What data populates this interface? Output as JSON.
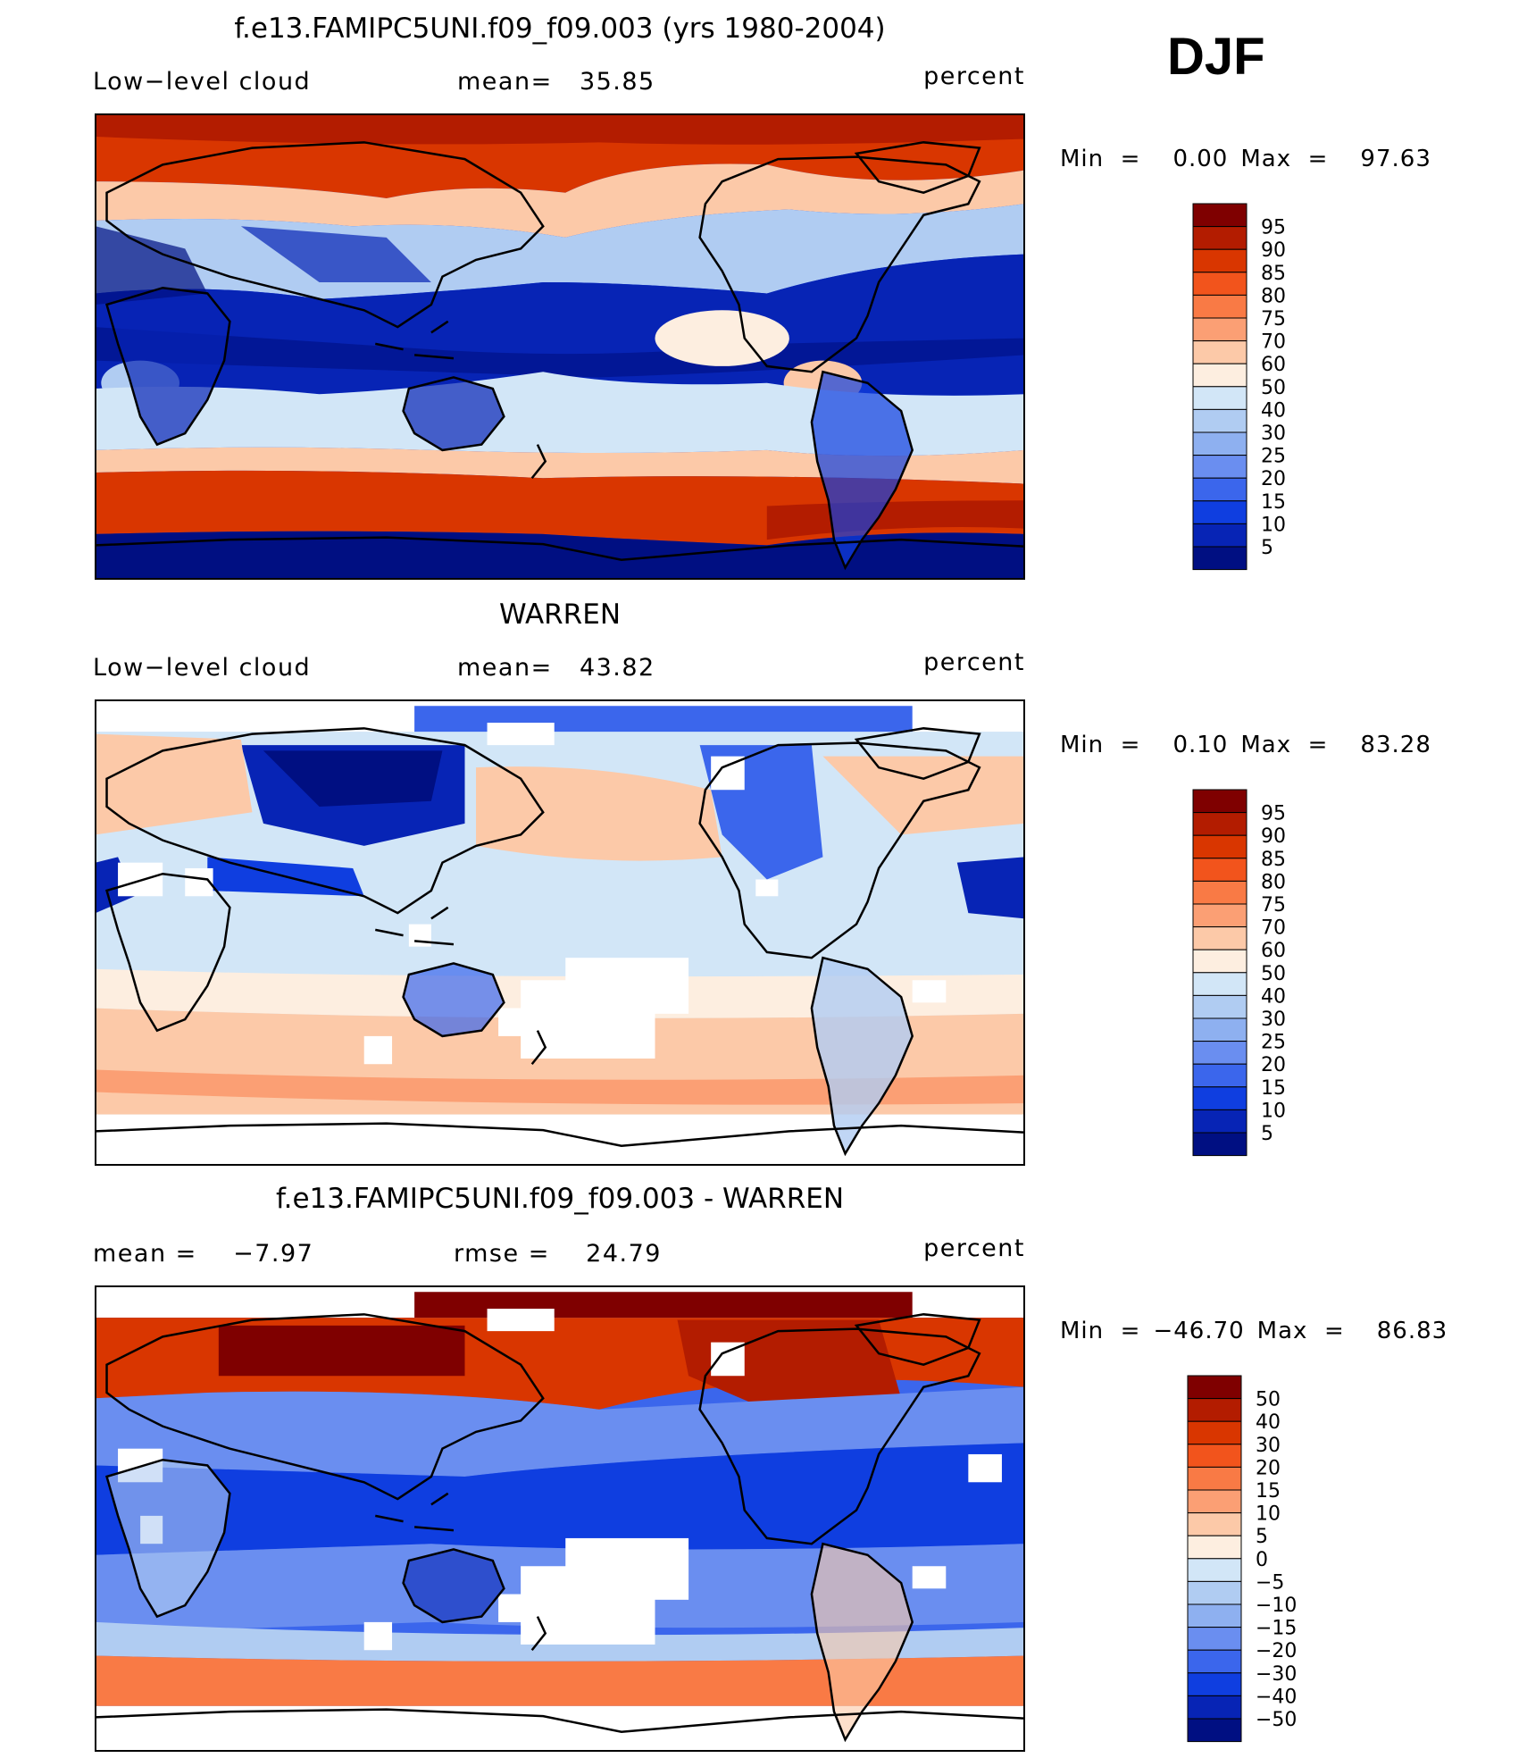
{
  "season": "DJF",
  "panels": [
    {
      "id": "model",
      "title": "f.e13.FAMIPC5UNI.f09_f09.003 (yrs 1980-2004)",
      "left_label": "Low−level cloud",
      "stat1": "mean=   35.85",
      "stat2": "",
      "unit": "percent",
      "minmax": {
        "min_label": "Min  =",
        "min": "0.00",
        "max_label": "Max  =",
        "max": "97.63"
      },
      "colorbar": {
        "labels": [
          "95",
          "90",
          "85",
          "80",
          "75",
          "70",
          "60",
          "50",
          "40",
          "30",
          "25",
          "20",
          "15",
          "10",
          "5"
        ],
        "colors": [
          "#7f0000",
          "#b31c00",
          "#d93600",
          "#f2541c",
          "#f97a45",
          "#fb9f74",
          "#fcc9a8",
          "#fdeee0",
          "#d2e6f7",
          "#b0ccf2",
          "#8eb0f0",
          "#6a8ef0",
          "#3b66ec",
          "#0f3ee0",
          "#0724b5",
          "#000f82"
        ]
      },
      "features": {
        "continent_outline_color": "#000000",
        "note": ""
      }
    },
    {
      "id": "obs",
      "title": "WARREN",
      "left_label": "Low−level cloud",
      "stat1": "mean=   43.82",
      "stat2": "",
      "unit": "percent",
      "minmax": {
        "min_label": "Min  =",
        "min": "0.10",
        "max_label": "Max  =",
        "max": "83.28"
      },
      "colorbar": {
        "labels": [
          "95",
          "90",
          "85",
          "80",
          "75",
          "70",
          "60",
          "50",
          "40",
          "30",
          "25",
          "20",
          "15",
          "10",
          "5"
        ],
        "colors": [
          "#7f0000",
          "#b31c00",
          "#d93600",
          "#f2541c",
          "#f97a45",
          "#fb9f74",
          "#fcc9a8",
          "#fdeee0",
          "#d2e6f7",
          "#b0ccf2",
          "#8eb0f0",
          "#6a8ef0",
          "#3b66ec",
          "#0f3ee0",
          "#0724b5",
          "#000f82"
        ]
      }
    },
    {
      "id": "diff",
      "title": "f.e13.FAMIPC5UNI.f09_f09.003 - WARREN",
      "left_label": "mean =    −7.97",
      "stat1": "rmse =    24.79",
      "stat2": "",
      "unit": "percent",
      "minmax": {
        "min_label": "Min  =",
        "min": "−46.70",
        "max_label": "Max  =",
        "max": "86.83"
      },
      "colorbar": {
        "labels": [
          "50",
          "40",
          "30",
          "20",
          "15",
          "10",
          "5",
          "0",
          "−5",
          "−10",
          "−15",
          "−20",
          "−30",
          "−40",
          "−50"
        ],
        "colors": [
          "#7f0000",
          "#b31c00",
          "#d93600",
          "#f2541c",
          "#f97a45",
          "#fb9f74",
          "#fcc9a8",
          "#fdeee0",
          "#d2e6f7",
          "#b0ccf2",
          "#8eb0f0",
          "#6a8ef0",
          "#3b66ec",
          "#0f3ee0",
          "#0724b5",
          "#000f82"
        ]
      }
    }
  ]
}
